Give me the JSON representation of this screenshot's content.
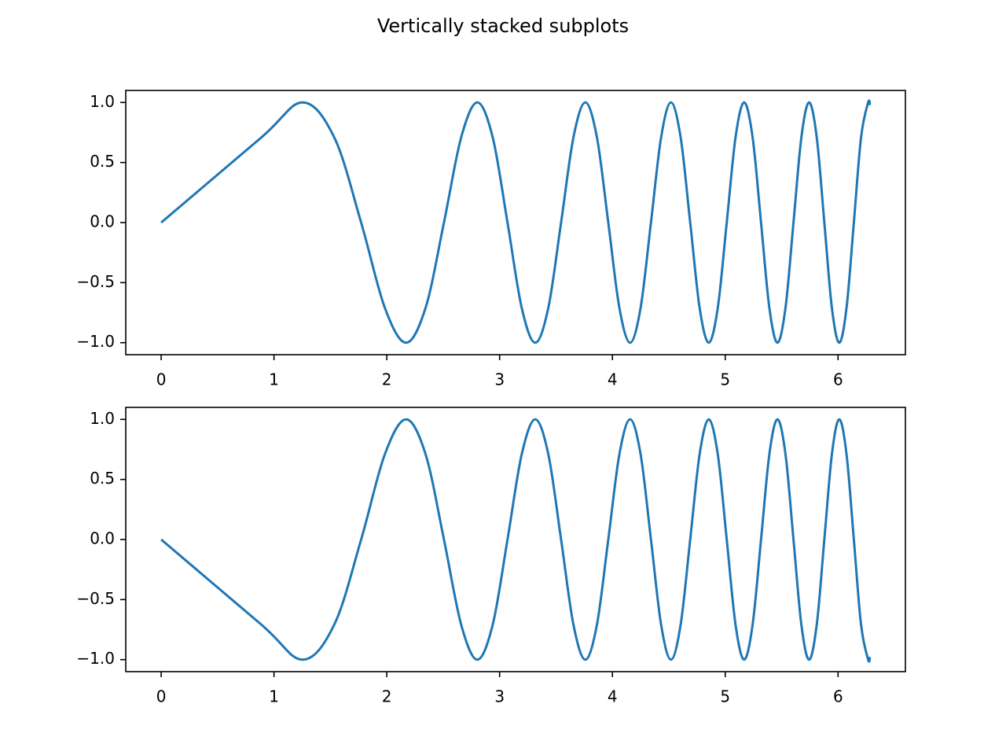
{
  "title": "Vertically stacked subplots",
  "chart_data": [
    {
      "type": "line",
      "x": [
        0,
        0.8862,
        1.2533,
        1.535,
        1.7725,
        1.9817,
        2.1708,
        2.3447,
        2.5066,
        2.6587,
        2.8025,
        2.9393,
        3.07,
        3.1954,
        3.316,
        3.4324,
        3.5449,
        3.654,
        3.7599,
        3.863,
        3.9633,
        4.0612,
        4.1568,
        4.2502,
        4.3416,
        4.4312,
        4.5189,
        4.605,
        4.6895,
        4.7725,
        4.8541,
        4.9343,
        5.0133,
        5.091,
        5.1675,
        5.243,
        5.3174,
        5.3907,
        5.4631,
        5.5345,
        5.605,
        5.6746,
        5.7434,
        5.8114,
        5.8785,
        5.945,
        6.0107,
        6.0756,
        6.14,
        6.2036,
        6.2666,
        6.2832
      ],
      "series": [
        {
          "color": "#1f77b4",
          "values": [
            0,
            0.707,
            1,
            0.707,
            0,
            -0.707,
            -1,
            -0.707,
            0,
            0.707,
            1,
            0.707,
            0,
            -0.707,
            -1,
            -0.707,
            0,
            0.707,
            1,
            0.707,
            0,
            -0.707,
            -1,
            -0.707,
            0,
            0.707,
            1,
            0.707,
            0,
            -0.707,
            -1,
            -0.707,
            0,
            0.707,
            1,
            0.707,
            0,
            -0.707,
            -1,
            -0.707,
            0,
            0.707,
            1,
            0.707,
            0,
            -0.707,
            -1,
            -0.707,
            0,
            0.707,
            1,
            0.978
          ]
        }
      ],
      "xlim": [
        -0.314,
        6.597
      ],
      "ylim": [
        -1.1,
        1.1
      ],
      "xticks": [
        0,
        1,
        2,
        3,
        4,
        5,
        6
      ],
      "yticks": [
        {
          "value": -1,
          "label": "−1.0"
        },
        {
          "value": -0.5,
          "label": "−0.5"
        },
        {
          "value": 0,
          "label": "0.0"
        },
        {
          "value": 0.5,
          "label": "0.5"
        },
        {
          "value": 1,
          "label": "1.0"
        }
      ]
    },
    {
      "type": "line",
      "x": [
        0,
        0.8862,
        1.2533,
        1.535,
        1.7725,
        1.9817,
        2.1708,
        2.3447,
        2.5066,
        2.6587,
        2.8025,
        2.9393,
        3.07,
        3.1954,
        3.316,
        3.4324,
        3.5449,
        3.654,
        3.7599,
        3.863,
        3.9633,
        4.0612,
        4.1568,
        4.2502,
        4.3416,
        4.4312,
        4.5189,
        4.605,
        4.6895,
        4.7725,
        4.8541,
        4.9343,
        5.0133,
        5.091,
        5.1675,
        5.243,
        5.3174,
        5.3907,
        5.4631,
        5.5345,
        5.605,
        5.6746,
        5.7434,
        5.8114,
        5.8785,
        5.945,
        6.0107,
        6.0756,
        6.14,
        6.2036,
        6.2666,
        6.2832
      ],
      "series": [
        {
          "color": "#1f77b4",
          "values": [
            0,
            -0.707,
            -1,
            -0.707,
            0,
            0.707,
            1,
            0.707,
            0,
            -0.707,
            -1,
            -0.707,
            0,
            0.707,
            1,
            0.707,
            0,
            -0.707,
            -1,
            -0.707,
            0,
            0.707,
            1,
            0.707,
            0,
            -0.707,
            -1,
            -0.707,
            0,
            0.707,
            1,
            0.707,
            0,
            -0.707,
            -1,
            -0.707,
            0,
            0.707,
            1,
            0.707,
            0,
            -0.707,
            -1,
            -0.707,
            0,
            0.707,
            1,
            0.707,
            0,
            -0.707,
            -1,
            -0.978
          ]
        }
      ],
      "xlim": [
        -0.314,
        6.597
      ],
      "ylim": [
        -1.1,
        1.1
      ],
      "xticks": [
        0,
        1,
        2,
        3,
        4,
        5,
        6
      ],
      "yticks": [
        {
          "value": -1,
          "label": "−1.0"
        },
        {
          "value": -0.5,
          "label": "−0.5"
        },
        {
          "value": 0,
          "label": "0.0"
        },
        {
          "value": 0.5,
          "label": "0.5"
        },
        {
          "value": 1,
          "label": "1.0"
        }
      ]
    }
  ]
}
